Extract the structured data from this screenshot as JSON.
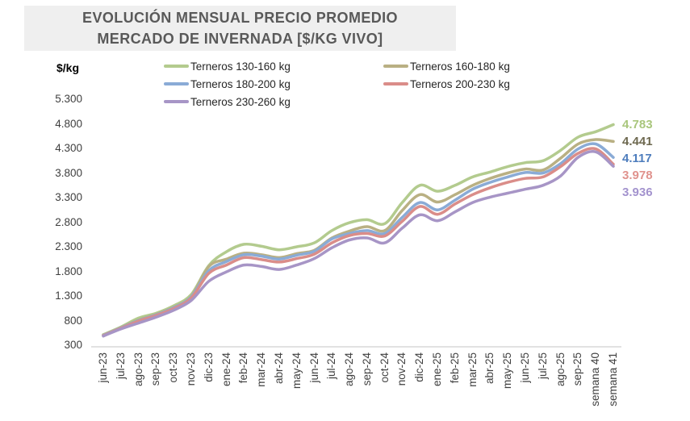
{
  "title": {
    "line1": "EVOLUCIÓN MENSUAL PRECIO PROMEDIO",
    "line2": "MERCADO DE INVERNADA [$/KG VIVO]"
  },
  "y_axis_unit": "$/kg",
  "chart_data": {
    "type": "line",
    "title": "EVOLUCIÓN MENSUAL PRECIO PROMEDIO MERCADO DE INVERNADA [$/KG VIVO]",
    "ylabel": "$/kg",
    "xlabel": "",
    "ylim": [
      300,
      5300
    ],
    "ytick_step": 500,
    "yticks": [
      5300,
      4800,
      4300,
      3800,
      3300,
      2800,
      2300,
      1800,
      1300,
      800,
      300
    ],
    "yticks_display": [
      "5.300",
      "4.800",
      "4.300",
      "3.800",
      "3.300",
      "2.800",
      "2.300",
      "1.800",
      "1.300",
      "800",
      "300"
    ],
    "grid": false,
    "legend_position": "top",
    "x_labels_rotated_90": true,
    "axis_line_color": "#d9d9d9",
    "categories": [
      "jun-23",
      "jul-23",
      "ago-23",
      "sep-23",
      "oct-23",
      "nov-23",
      "dic-23",
      "ene-24",
      "feb-24",
      "mar-24",
      "abr-24",
      "may-24",
      "jun-24",
      "jul-24",
      "ago-24",
      "sep-24",
      "oct-24",
      "nov-24",
      "dic-24",
      "ene-25",
      "feb-25",
      "mar-25",
      "abr-25",
      "may-25",
      "jun-25",
      "jul-25",
      "ago-25",
      "sep-25",
      "semana 40",
      "semana 41"
    ],
    "series": [
      {
        "name": "Terneros 130-160 kg",
        "color": "#b3cb8e",
        "end_label": "4.783",
        "end_label_color": "#a9c67c",
        "values": [
          515,
          670,
          850,
          950,
          1100,
          1330,
          1920,
          2200,
          2350,
          2310,
          2240,
          2300,
          2380,
          2630,
          2790,
          2850,
          2770,
          3200,
          3550,
          3430,
          3550,
          3720,
          3820,
          3930,
          4010,
          4050,
          4260,
          4530,
          4640,
          4783
        ]
      },
      {
        "name": "Terneros 160-180 kg",
        "color": "#b9b083",
        "end_label": "4.441",
        "end_label_color": "#6e6950",
        "values": [
          505,
          655,
          810,
          925,
          1070,
          1290,
          1900,
          2050,
          2170,
          2140,
          2080,
          2160,
          2230,
          2480,
          2620,
          2710,
          2630,
          3040,
          3360,
          3210,
          3360,
          3550,
          3690,
          3800,
          3880,
          3860,
          4100,
          4390,
          4480,
          4441
        ]
      },
      {
        "name": "Terneros 180-200 kg",
        "color": "#8aabd6",
        "end_label": "4.117",
        "end_label_color": "#4e7dbd",
        "values": [
          500,
          650,
          800,
          915,
          1060,
          1280,
          1815,
          2000,
          2140,
          2110,
          2050,
          2130,
          2210,
          2460,
          2570,
          2630,
          2570,
          2900,
          3200,
          3050,
          3250,
          3470,
          3610,
          3720,
          3810,
          3800,
          3990,
          4290,
          4390,
          4117
        ]
      },
      {
        "name": "Terneros 200-230 kg",
        "color": "#da8d89",
        "end_label": "3.978",
        "end_label_color": "#e0928d",
        "values": [
          495,
          645,
          790,
          905,
          1045,
          1260,
          1760,
          1930,
          2080,
          2040,
          1990,
          2060,
          2150,
          2380,
          2530,
          2570,
          2520,
          2820,
          3120,
          2960,
          3170,
          3360,
          3500,
          3610,
          3690,
          3720,
          3930,
          4200,
          4290,
          3978
        ]
      },
      {
        "name": "Terneros 230-260 kg",
        "color": "#a795c6",
        "end_label": "3.936",
        "end_label_color": "#a393ce",
        "values": [
          485,
          630,
          750,
          870,
          1010,
          1210,
          1600,
          1790,
          1930,
          1900,
          1840,
          1930,
          2060,
          2280,
          2440,
          2480,
          2380,
          2680,
          2950,
          2830,
          3010,
          3200,
          3310,
          3390,
          3470,
          3550,
          3740,
          4120,
          4230,
          3936
        ]
      }
    ]
  }
}
